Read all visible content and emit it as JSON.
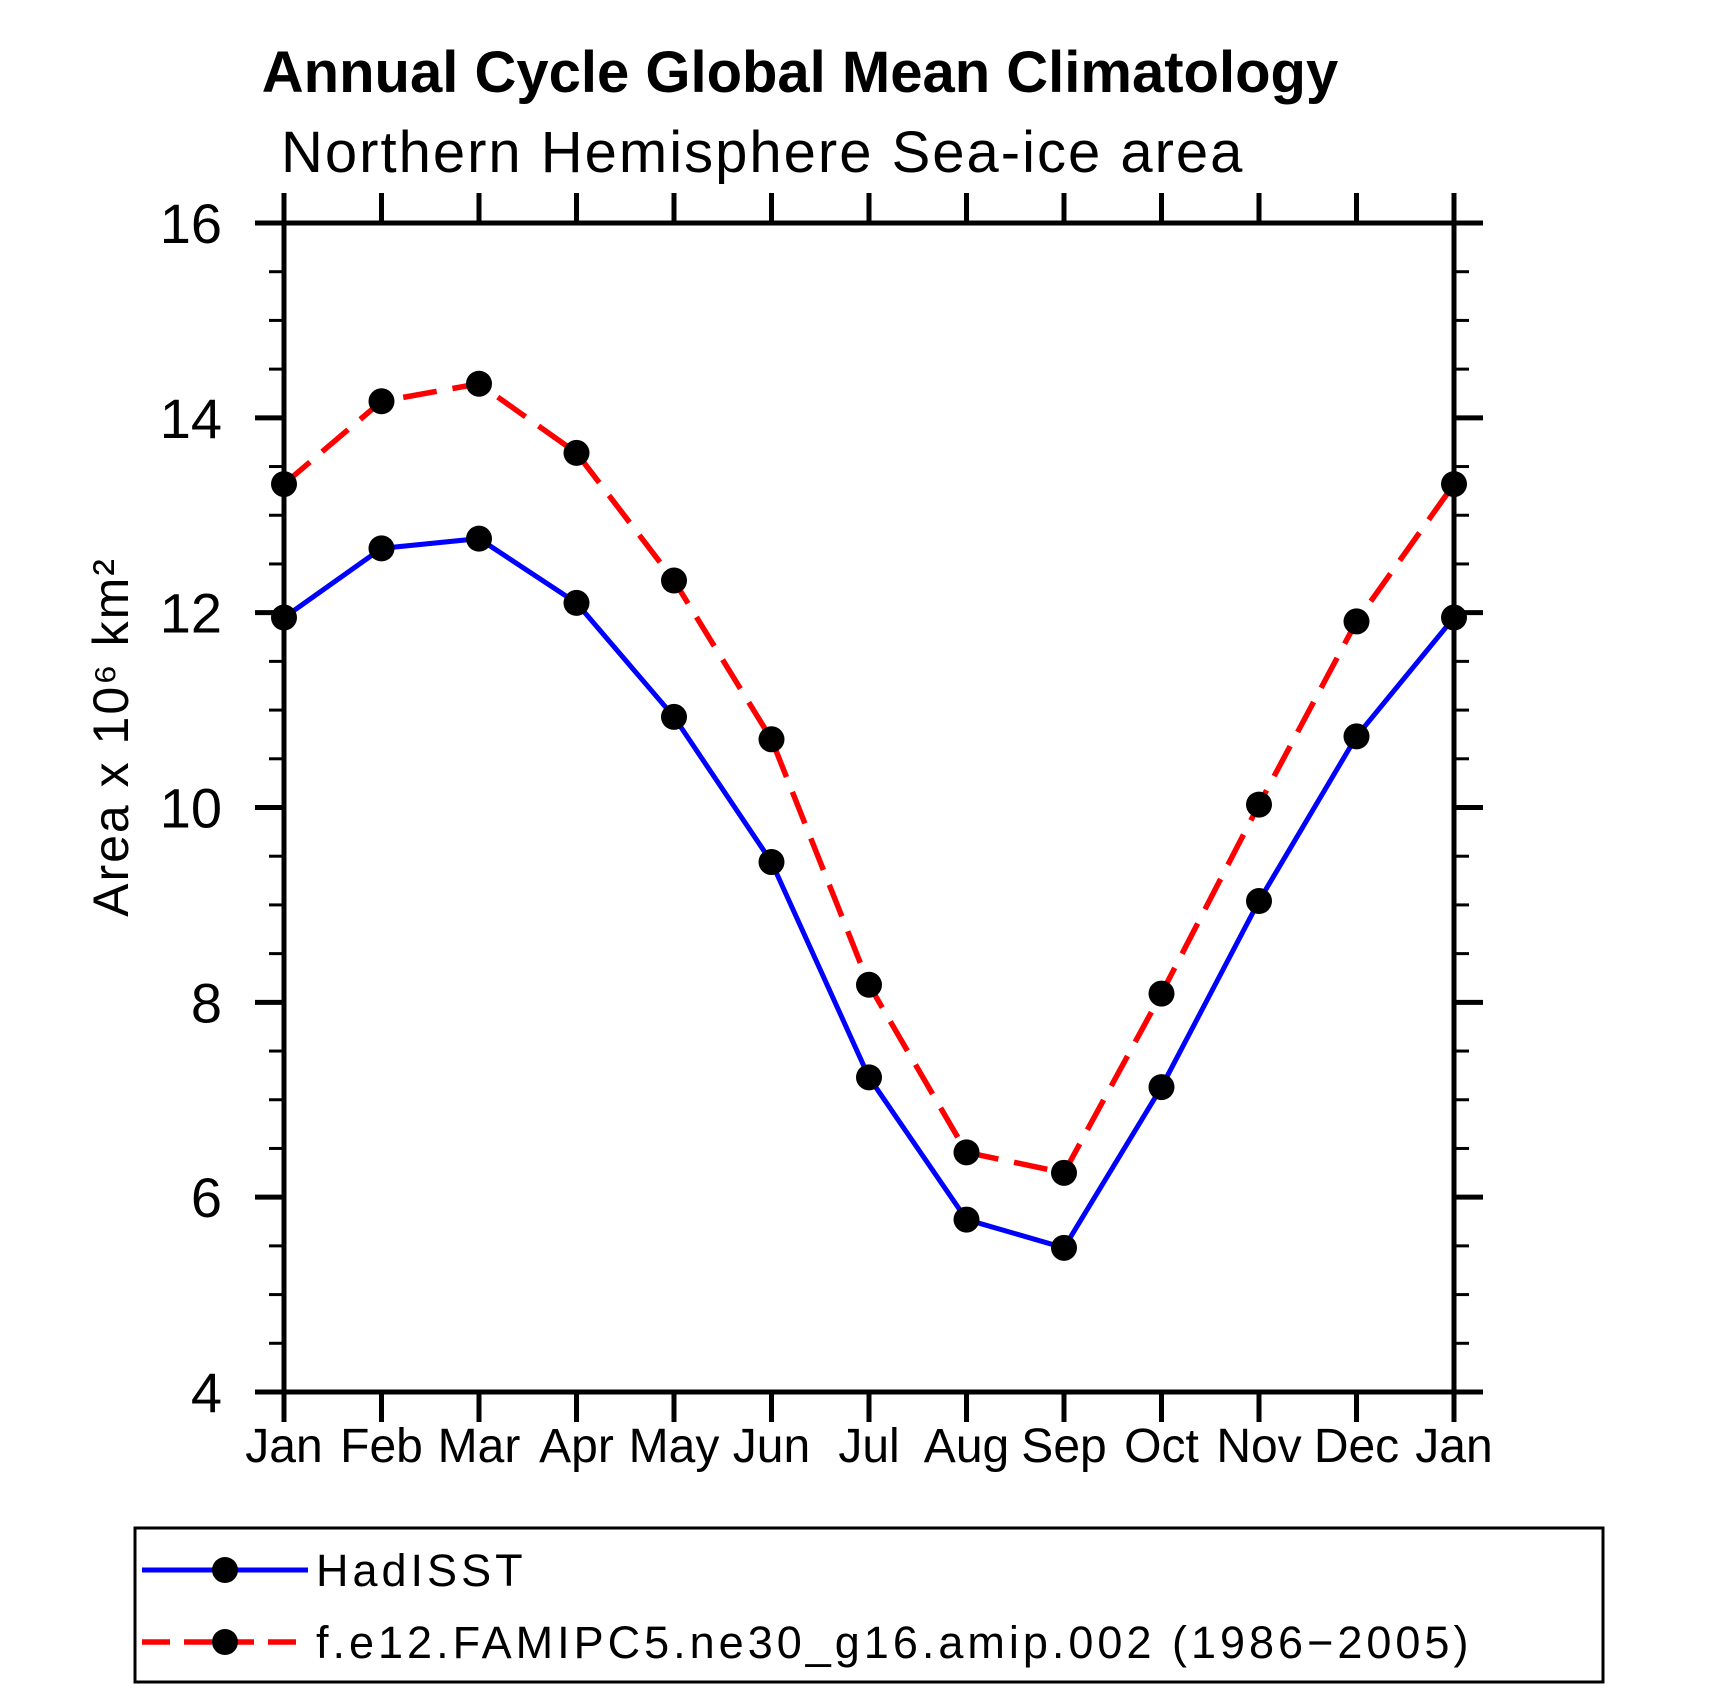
{
  "figure": {
    "title": "Annual Cycle Global Mean Climatology",
    "subtitle": "Northern Hemisphere Sea-ice area",
    "ylabel": "Area x 10⁶ km²"
  },
  "colors": {
    "hadisst_line": "#0000ff",
    "model_line": "#ff0000",
    "marker": "#000000",
    "axis": "#000000",
    "background": "#ffffff"
  },
  "legend": {
    "items": [
      {
        "label": "HadISST",
        "line_style": "solid",
        "color": "#0000ff"
      },
      {
        "label": "f.e12.FAMIPC5.ne30_g16.amip.002 (1986−2005)",
        "line_style": "dashed",
        "color": "#ff0000"
      }
    ]
  },
  "chart_data": {
    "type": "line",
    "title": "Annual Cycle Global Mean Climatology",
    "subtitle": "Northern Hemisphere Sea-ice area",
    "xlabel": "",
    "ylabel": "Area x 10⁶ km²",
    "categories": [
      "Jan",
      "Feb",
      "Mar",
      "Apr",
      "May",
      "Jun",
      "Jul",
      "Aug",
      "Sep",
      "Oct",
      "Nov",
      "Dec",
      "Jan"
    ],
    "ylim": [
      4,
      16
    ],
    "y_ticks": [
      16,
      14,
      12,
      10,
      8,
      6,
      4
    ],
    "y_minor_step": 0.5,
    "grid": false,
    "legend_position": "bottom-left-box",
    "marker": "filled-circle",
    "series": [
      {
        "name": "HadISST",
        "color": "#0000ff",
        "style": "solid",
        "marker_color": "#000000",
        "values": [
          11.95,
          12.66,
          12.76,
          12.1,
          10.93,
          9.44,
          7.23,
          5.77,
          5.48,
          7.13,
          9.04,
          10.73,
          11.95
        ]
      },
      {
        "name": "f.e12.FAMIPC5.ne30_g16.amip.002 (1986−2005)",
        "color": "#ff0000",
        "style": "dashed",
        "marker_color": "#000000",
        "values": [
          13.32,
          14.17,
          14.35,
          13.64,
          12.33,
          10.7,
          8.18,
          6.46,
          6.25,
          8.09,
          10.03,
          11.91,
          13.32
        ]
      }
    ]
  }
}
